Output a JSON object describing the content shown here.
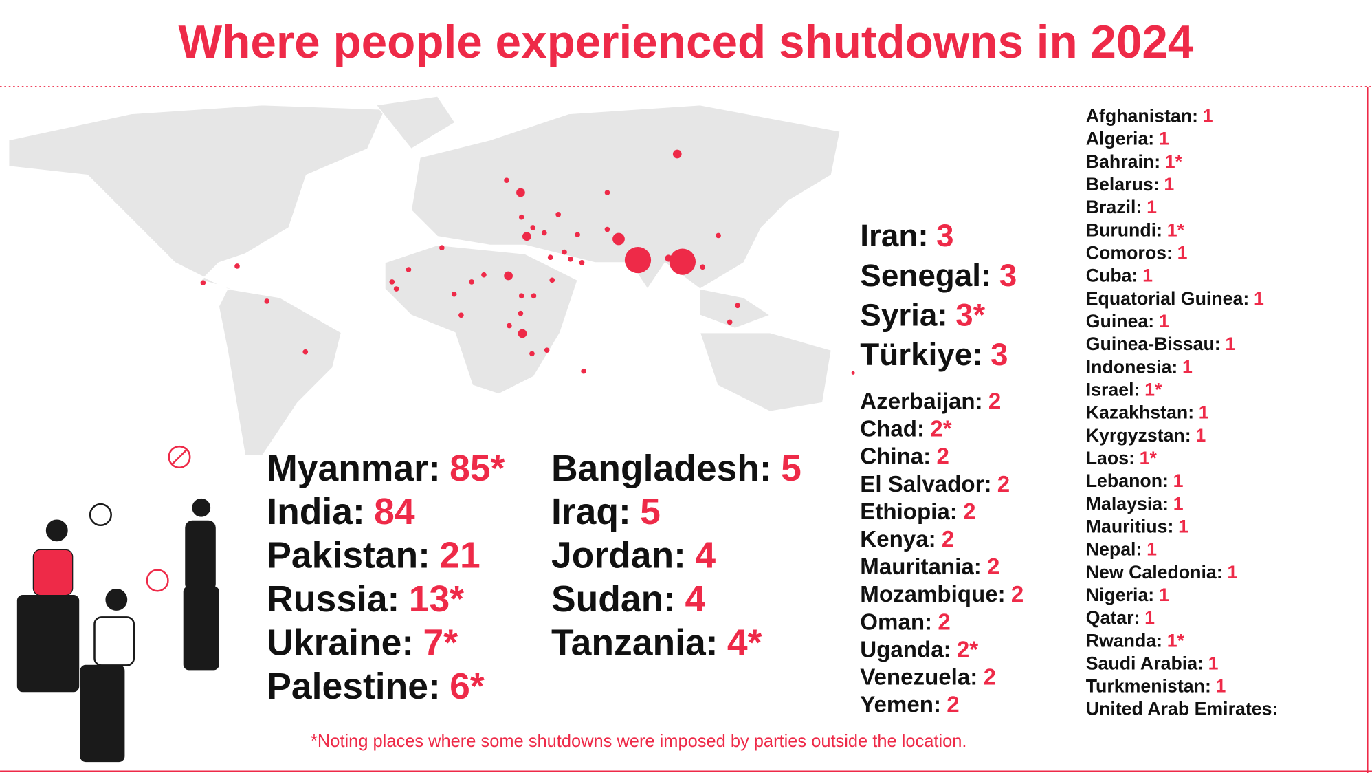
{
  "title": "Where people experienced shutdowns in 2024",
  "top_list": {
    "column_1": [
      {
        "name": "Myanmar:",
        "count": "85*"
      },
      {
        "name": "India:",
        "count": 84
      },
      {
        "name": "Pakistan:",
        "count": 21
      },
      {
        "name": "Russia:",
        "count": "13*"
      },
      {
        "name": "Ukraine:",
        "count": "7*"
      },
      {
        "name": "Palestine:",
        "count": "6*"
      }
    ],
    "column_2": [
      {
        "name": "Bangladesh:",
        "count": 5
      },
      {
        "name": "Iraq:",
        "count": 5
      },
      {
        "name": "Jordan:",
        "count": 4
      },
      {
        "name": "Sudan:",
        "count": 4
      },
      {
        "name": "Tanzania:",
        "count": "4*"
      }
    ]
  },
  "list_three": [
    {
      "name": "Iran:",
      "count": 3
    },
    {
      "name": "Senegal:",
      "count": 3
    },
    {
      "name": "Syria:",
      "count": "3*"
    },
    {
      "name": "Türkiye:",
      "count": 3
    }
  ],
  "list_two": [
    {
      "name": "Azerbaijan:",
      "count": 2
    },
    {
      "name": "Chad:",
      "count": "2*"
    },
    {
      "name": "China:",
      "count": 2
    },
    {
      "name": "El Salvador:",
      "count": 2
    },
    {
      "name": "Ethiopia:",
      "count": 2
    },
    {
      "name": "Kenya:",
      "count": 2
    },
    {
      "name": "Mauritania:",
      "count": 2
    },
    {
      "name": "Mozambique:",
      "count": 2
    },
    {
      "name": "Oman:",
      "count": 2
    },
    {
      "name": "Uganda:",
      "count": "2*"
    },
    {
      "name": "Venezuela:",
      "count": 2
    },
    {
      "name": "Yemen:",
      "count": 2
    }
  ],
  "list_one": [
    {
      "name": "Afghanistan:",
      "count": 1
    },
    {
      "name": "Algeria:",
      "count": 1
    },
    {
      "name": "Bahrain:",
      "count": "1*"
    },
    {
      "name": "Belarus:",
      "count": 1
    },
    {
      "name": "Brazil:",
      "count": 1
    },
    {
      "name": "Burundi:",
      "count": "1*"
    },
    {
      "name": "Comoros:",
      "count": 1
    },
    {
      "name": "Cuba:",
      "count": 1
    },
    {
      "name": "Equatorial Guinea:",
      "count": 1
    },
    {
      "name": "Guinea:",
      "count": 1
    },
    {
      "name": "Guinea-Bissau:",
      "count": 1
    },
    {
      "name": "Indonesia:",
      "count": 1
    },
    {
      "name": "Israel:",
      "count": "1*"
    },
    {
      "name": "Kazakhstan:",
      "count": 1
    },
    {
      "name": "Kyrgyzstan:",
      "count": 1
    },
    {
      "name": "Laos:",
      "count": "1*"
    },
    {
      "name": "Lebanon:",
      "count": 1
    },
    {
      "name": "Malaysia:",
      "count": 1
    },
    {
      "name": "Mauritius:",
      "count": 1
    },
    {
      "name": "Nepal:",
      "count": 1
    },
    {
      "name": "New Caledonia:",
      "count": 1
    },
    {
      "name": "Nigeria:",
      "count": 1
    },
    {
      "name": "Qatar:",
      "count": 1
    },
    {
      "name": "Rwanda:",
      "count": "1*"
    },
    {
      "name": "Saudi Arabia:",
      "count": 1
    },
    {
      "name": "Turkmenistan:",
      "count": 1
    },
    {
      "name": "United Arab Emirates:"
    }
  ],
  "footnote": "*Noting places where some shutdowns were imposed by parties outside the location."
}
